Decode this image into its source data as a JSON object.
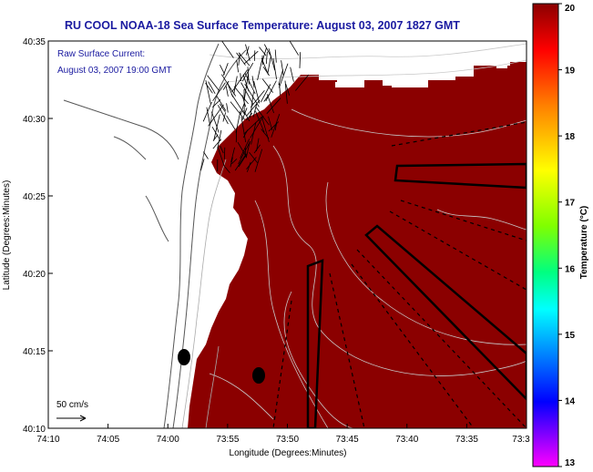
{
  "chart_data": {
    "type": "heatmap",
    "title": "RU COOL  NOAA-18  Sea Surface Temperature:  August 03, 2007 1827 GMT",
    "annotation_lines": [
      "Raw Surface Current:",
      "August 03, 2007 19:00 GMT"
    ],
    "scale_arrow_label": "50 cm/s",
    "xlabel": "Longitude (Degrees:Minutes)",
    "ylabel": "Latitude (Degrees:Minutes)",
    "x_ticks": [
      "74:10",
      "74:05",
      "74:00",
      "73:55",
      "73:50",
      "73:45",
      "73:40",
      "73:35",
      "73:3"
    ],
    "y_ticks": [
      "40:35",
      "40:30",
      "40:25",
      "40:20",
      "40:15",
      "40:10"
    ],
    "xlim_deg": [
      -74.1667,
      -73.5
    ],
    "ylim_deg": [
      40.1667,
      40.5833
    ],
    "colorbar": {
      "label": "Temperature (°C)",
      "range": [
        13,
        20
      ],
      "ticks": [
        "20",
        "19",
        "18",
        "17",
        "16",
        "15",
        "14",
        "13"
      ],
      "colors": [
        "#8b0000",
        "#ff0000",
        "#ff8000",
        "#ffff00",
        "#80ff00",
        "#00ff80",
        "#00ffff",
        "#0080ff",
        "#0000ff",
        "#8000ff",
        "#ff00ff"
      ]
    },
    "field": {
      "dominant_value": 20,
      "color": "#8b0000",
      "cloud_mask_color": "#ffffff"
    },
    "colors": {
      "title": "#1a1aa0",
      "land": "#ffffff",
      "contour": "#c8c8c8",
      "coast": "#555555"
    }
  }
}
